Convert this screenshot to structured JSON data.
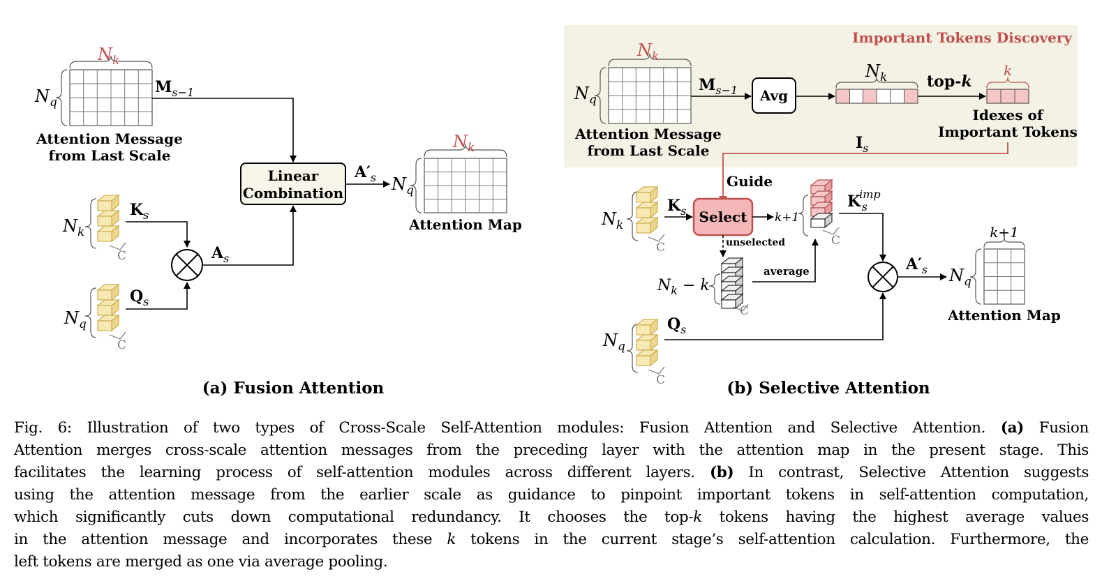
{
  "panel_a": {
    "title": "(a) Fusion Attention",
    "attn_msg_label_1": "Attention Message",
    "attn_msg_label_2": "from Last Scale",
    "m_label": "M",
    "m_sub": "s−1",
    "k_label": "K",
    "k_sub": "s",
    "q_label": "Q",
    "q_sub": "s",
    "a_label": "A",
    "a_sub": "s",
    "ap_label": "A′",
    "ap_sub": "s",
    "linear_1": "Linear",
    "linear_2": "Combination",
    "attn_map_label": "Attention Map",
    "nk": "N",
    "nk_sub": "k",
    "nq": "N",
    "nq_sub": "q",
    "c": "C"
  },
  "panel_b": {
    "title": "(b) Selective Attention",
    "itd_title": "Important Tokens Discovery",
    "avg": "Avg",
    "topk": "top-",
    "topk_k": "k",
    "k_small": "k",
    "idx_1": "Idexes of",
    "idx_2": "Important Tokens",
    "is_label": "I",
    "is_sub": "s",
    "guide": "Guide",
    "select": "Select",
    "unselected": "unselected",
    "average": "average",
    "kp1": "k+1",
    "kimp": "K",
    "kimp_sub": "s",
    "kimp_sup": "imp",
    "nk_minus_k": "N",
    "nk_minus_k_rest": " − k",
    "attn_msg_label_1": "Attention Message",
    "attn_msg_label_2": "from Last Scale",
    "attn_map_label": "Attention Map"
  },
  "colors": {
    "accent_red": "#c0504d",
    "itd_bg": "#f4f1e5",
    "token_yellow_fill": "#f7e9b4",
    "token_yellow_stroke": "#cfae4f",
    "select_fill": "#f4b8b8",
    "pink_cell": "#f6c6c6",
    "linear_bg": "#f8f6ea"
  },
  "caption": {
    "fig_label": "Fig. 6:",
    "l1": "  Illustration of two types of Cross-Scale Self-Attention modules: Fusion Attention and Selective Attention.",
    "a_tag": "(a)",
    "l1b": " Fusion",
    "l2": "Attention merges cross-scale attention messages from the preceding layer with the attention map in the present stage. This",
    "l3": "facilitates the learning process of self-attention modules across different layers.",
    "b_tag": "(b)",
    "l3b": " In contrast, Selective Attention suggests",
    "l4": "using the attention message from the earlier scale as guidance to pinpoint important tokens in self-attention computation,",
    "l5a": "which significantly cuts down computational redundancy. It chooses the top-",
    "l5k": "k",
    "l5b": " tokens having the highest average values",
    "l6a": "in the attention message and incorporates these ",
    "l6k": "k",
    "l6b": " tokens in the current stage’s self-attention calculation. Furthermore, the",
    "l7": "left tokens are merged as one via average pooling."
  }
}
